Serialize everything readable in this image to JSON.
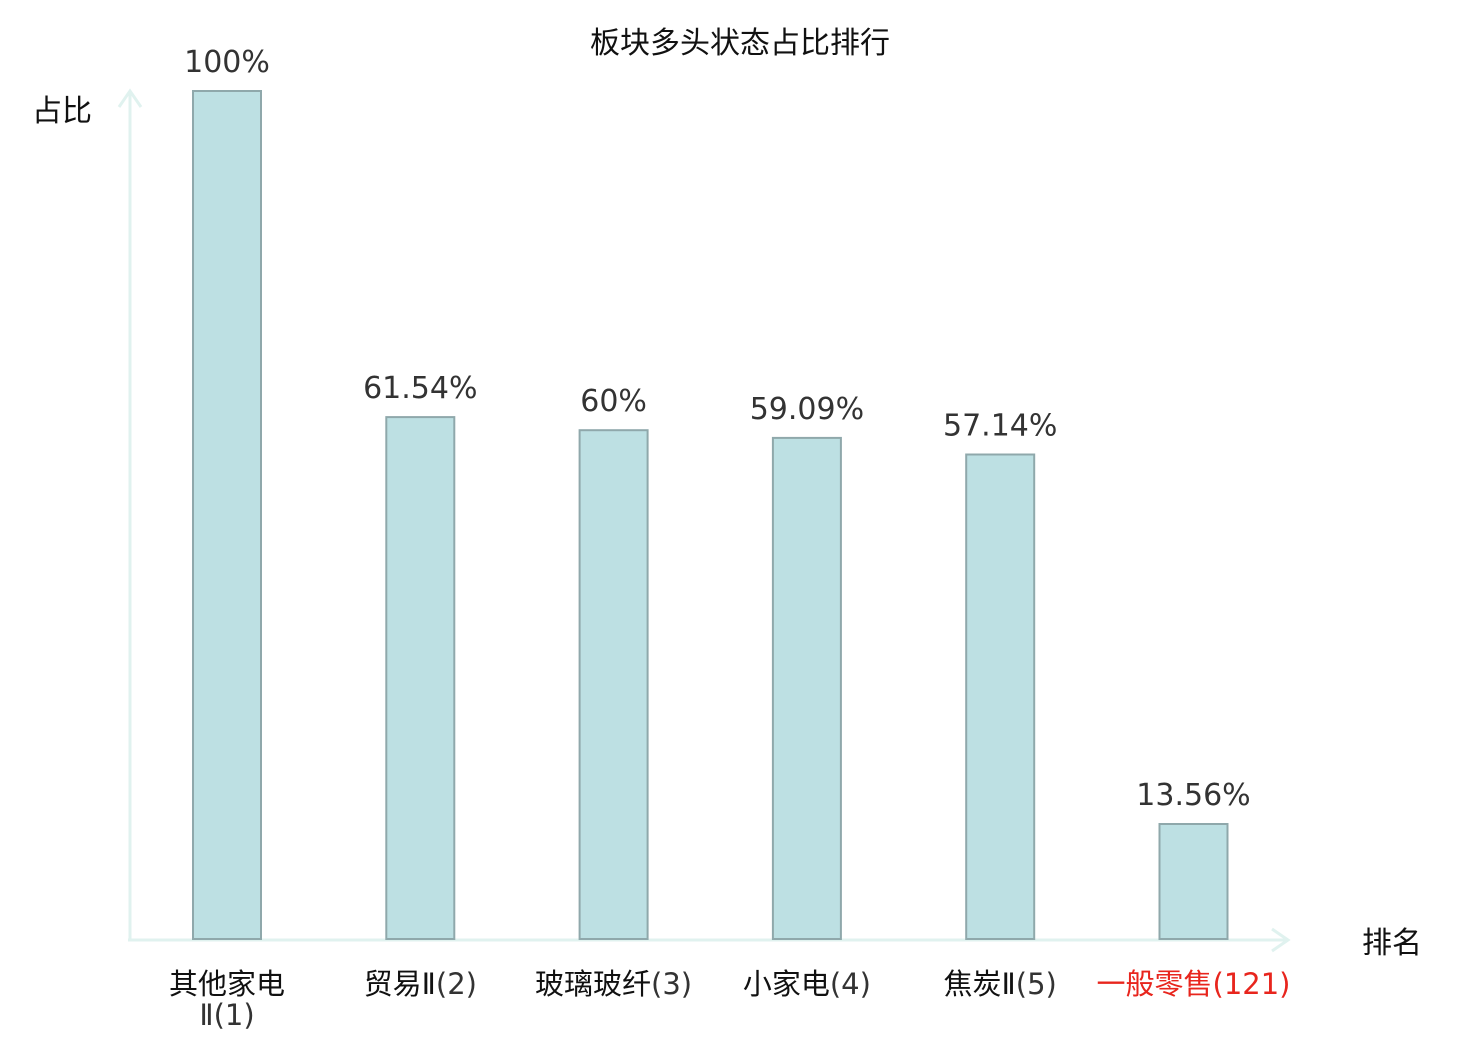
{
  "chart_data": {
    "type": "bar",
    "title": "板块多头状态占比排行",
    "ylabel": "占比",
    "xlabel": "排名",
    "ylim": [
      0,
      100
    ],
    "grid": false,
    "categories": [
      {
        "name": "其他家电Ⅱ",
        "rank": "(1)",
        "highlight": false
      },
      {
        "name": "贸易Ⅱ",
        "rank": "(2)",
        "highlight": false
      },
      {
        "name": "玻璃玻纤",
        "rank": "(3)",
        "highlight": false
      },
      {
        "name": "小家电",
        "rank": "(4)",
        "highlight": false
      },
      {
        "name": "焦炭Ⅱ",
        "rank": "(5)",
        "highlight": false
      },
      {
        "name": "一般零售",
        "rank": "(121)",
        "highlight": true
      }
    ],
    "values": [
      100,
      61.54,
      60,
      59.09,
      57.14,
      13.56
    ],
    "value_labels": [
      "100%",
      "61.54%",
      "60%",
      "59.09%",
      "57.14%",
      "13.56%"
    ],
    "colors": {
      "bar_fill": "#bde0e3",
      "bar_stroke": "#8fa8ab",
      "axis": "#e0f2ef",
      "highlight_text": "#e8251d",
      "name_text": "#111111",
      "rank_text": "#333333"
    }
  }
}
